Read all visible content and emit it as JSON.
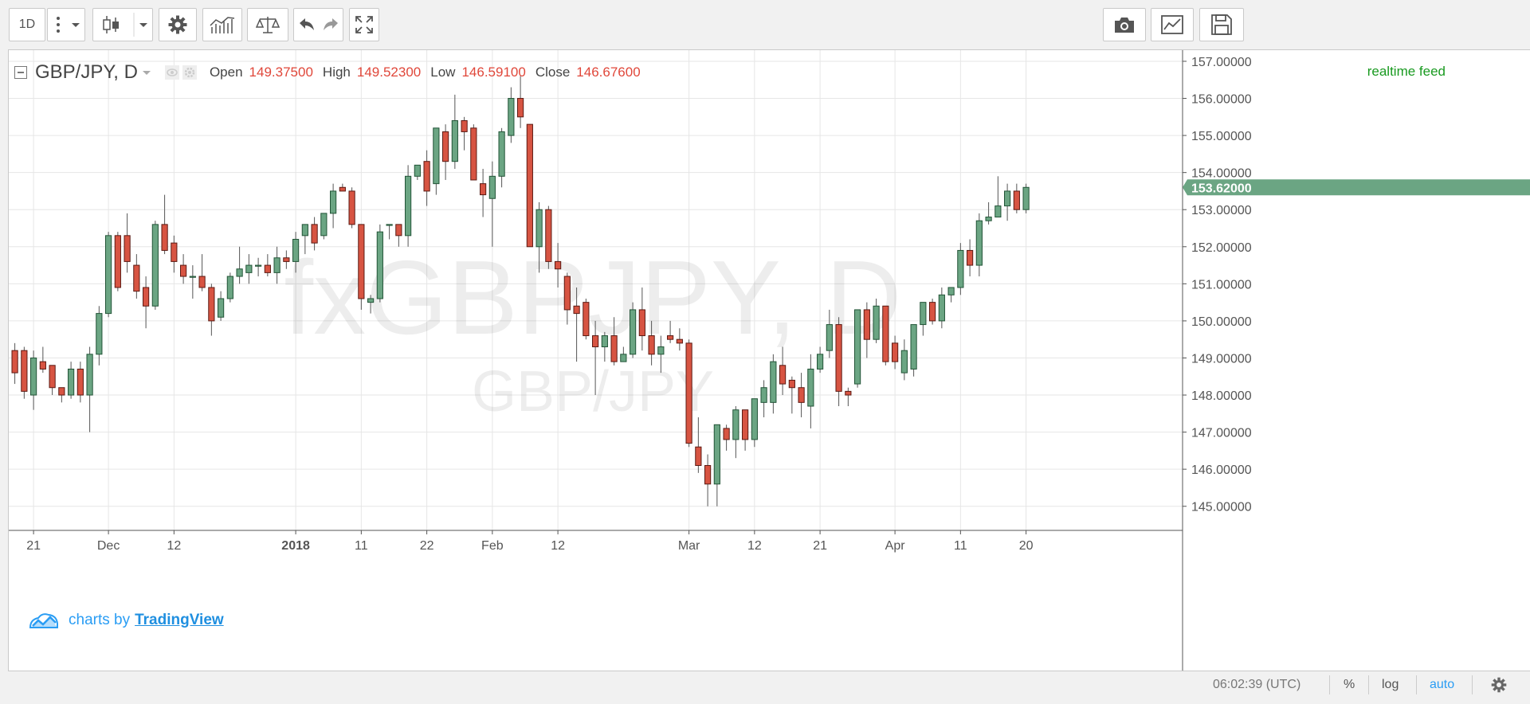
{
  "toolbar": {
    "interval": "1D",
    "icons": [
      "more-icon",
      "chevron-down-icon",
      "candles-icon",
      "chevron-down-icon",
      "gear-icon",
      "indicators-icon",
      "compare-icon",
      "undo-icon",
      "redo-icon",
      "fullscreen-icon",
      "camera-icon",
      "chart-properties-icon",
      "save-icon"
    ]
  },
  "legend": {
    "symbol": "GBP/JPY, D",
    "open_label": "Open",
    "open": "149.37500",
    "high_label": "High",
    "high": "149.52300",
    "low_label": "Low",
    "low": "146.59100",
    "close_label": "Close",
    "close": "146.67600"
  },
  "realtime": "realtime feed",
  "watermark": {
    "main": "fxGBPJPY, D",
    "sub": "GBP/JPY"
  },
  "branding": {
    "prefix": "charts by",
    "name": "TradingView"
  },
  "last_price_label": "153.62000",
  "status": {
    "time": "06:02:39 (UTC)",
    "percent": "%",
    "log": "log",
    "auto": "auto"
  },
  "colors": {
    "up": "#6ba583",
    "down": "#d75442",
    "up_border": "#225437",
    "down_border": "#5b1a13",
    "last_price": "#6ba583",
    "realtime": "#199a20",
    "values": "#e0473a"
  },
  "chart_data": {
    "type": "candlestick",
    "title": "GBP/JPY, D",
    "ylim": [
      144.35,
      157.3
    ],
    "y_ticks": [
      "157.00000",
      "156.00000",
      "155.00000",
      "154.00000",
      "153.00000",
      "152.00000",
      "151.00000",
      "150.00000",
      "149.00000",
      "148.00000",
      "147.00000",
      "146.00000",
      "145.00000"
    ],
    "x_ticks": [
      {
        "label": "21",
        "index": 2
      },
      {
        "label": "Dec",
        "index": 10
      },
      {
        "label": "12",
        "index": 17
      },
      {
        "label": "2018",
        "index": 30,
        "bold": true
      },
      {
        "label": "11",
        "index": 37
      },
      {
        "label": "22",
        "index": 44
      },
      {
        "label": "Feb",
        "index": 51
      },
      {
        "label": "12",
        "index": 58
      },
      {
        "label": "Mar",
        "index": 72
      },
      {
        "label": "12",
        "index": 79
      },
      {
        "label": "21",
        "index": 86
      },
      {
        "label": "Apr",
        "index": 94
      },
      {
        "label": "11",
        "index": 101
      },
      {
        "label": "20",
        "index": 108
      }
    ],
    "candles": [
      [
        149.2,
        149.4,
        148.3,
        148.6
      ],
      [
        149.2,
        149.3,
        147.9,
        148.1
      ],
      [
        148.0,
        149.2,
        147.6,
        149.0
      ],
      [
        148.9,
        149.3,
        148.6,
        148.7
      ],
      [
        148.8,
        148.8,
        148.0,
        148.2
      ],
      [
        148.2,
        148.2,
        147.8,
        148.0
      ],
      [
        148.0,
        148.9,
        147.9,
        148.7
      ],
      [
        148.7,
        148.9,
        147.8,
        148.0
      ],
      [
        148.0,
        149.3,
        147.0,
        149.1
      ],
      [
        149.1,
        150.4,
        148.8,
        150.2
      ],
      [
        150.2,
        152.4,
        150.1,
        152.3
      ],
      [
        152.3,
        152.4,
        150.8,
        150.9
      ],
      [
        152.3,
        152.9,
        151.3,
        151.6
      ],
      [
        151.5,
        151.8,
        150.6,
        150.8
      ],
      [
        150.9,
        151.2,
        149.8,
        150.4
      ],
      [
        150.4,
        152.7,
        150.3,
        152.6
      ],
      [
        152.6,
        153.4,
        151.8,
        151.9
      ],
      [
        152.1,
        152.3,
        151.3,
        151.6
      ],
      [
        151.5,
        151.8,
        151.0,
        151.2
      ],
      [
        151.2,
        151.5,
        150.6,
        151.2
      ],
      [
        151.2,
        151.8,
        150.8,
        150.9
      ],
      [
        150.9,
        151.0,
        149.6,
        150.0
      ],
      [
        150.1,
        150.8,
        150.0,
        150.6
      ],
      [
        150.6,
        151.3,
        150.5,
        151.2
      ],
      [
        151.2,
        152.0,
        151.0,
        151.4
      ],
      [
        151.3,
        151.8,
        151.0,
        151.5
      ],
      [
        151.5,
        151.7,
        151.2,
        151.5
      ],
      [
        151.5,
        151.8,
        151.2,
        151.3
      ],
      [
        151.3,
        152.0,
        151.0,
        151.7
      ],
      [
        151.7,
        151.9,
        151.4,
        151.6
      ],
      [
        151.6,
        152.4,
        151.3,
        152.2
      ],
      [
        152.3,
        152.6,
        151.8,
        152.6
      ],
      [
        152.6,
        152.8,
        151.9,
        152.1
      ],
      [
        152.3,
        152.9,
        152.2,
        152.9
      ],
      [
        152.9,
        153.7,
        152.5,
        153.5
      ],
      [
        153.6,
        153.7,
        153.5,
        153.5
      ],
      [
        153.5,
        153.6,
        152.5,
        152.6
      ],
      [
        152.6,
        152.6,
        150.3,
        150.6
      ],
      [
        150.5,
        150.7,
        150.2,
        150.6
      ],
      [
        150.6,
        152.6,
        150.5,
        152.4
      ],
      [
        152.6,
        152.6,
        152.2,
        152.6
      ],
      [
        152.6,
        152.6,
        152.0,
        152.3
      ],
      [
        152.3,
        154.2,
        152.0,
        153.9
      ],
      [
        153.9,
        154.2,
        153.8,
        154.2
      ],
      [
        154.3,
        154.6,
        153.1,
        153.5
      ],
      [
        153.7,
        155.2,
        153.4,
        155.2
      ],
      [
        155.1,
        155.3,
        153.8,
        154.3
      ],
      [
        154.3,
        156.1,
        154.1,
        155.4
      ],
      [
        155.4,
        155.5,
        154.6,
        155.1
      ],
      [
        155.2,
        155.3,
        153.8,
        153.8
      ],
      [
        153.7,
        154.1,
        152.8,
        153.4
      ],
      [
        153.3,
        154.3,
        152.0,
        153.9
      ],
      [
        153.9,
        155.2,
        153.6,
        155.1
      ],
      [
        155.0,
        156.3,
        154.8,
        156.0
      ],
      [
        156.0,
        156.6,
        155.2,
        155.5
      ],
      [
        155.3,
        155.3,
        152.1,
        152.0
      ],
      [
        152.0,
        153.2,
        151.3,
        153.0
      ],
      [
        153.0,
        153.1,
        151.4,
        151.6
      ],
      [
        151.6,
        152.1,
        150.9,
        151.4
      ],
      [
        151.2,
        151.3,
        149.9,
        150.3
      ],
      [
        150.4,
        150.9,
        148.9,
        150.2
      ],
      [
        150.5,
        150.6,
        149.5,
        149.6
      ],
      [
        149.6,
        150.0,
        148.0,
        149.3
      ],
      [
        149.3,
        149.7,
        148.9,
        149.6
      ],
      [
        149.6,
        150.1,
        148.8,
        148.9
      ],
      [
        148.9,
        149.3,
        148.9,
        149.1
      ],
      [
        149.1,
        150.5,
        149.0,
        150.3
      ],
      [
        150.3,
        150.9,
        149.2,
        149.6
      ],
      [
        149.6,
        150.0,
        148.8,
        149.1
      ],
      [
        149.1,
        149.6,
        148.6,
        149.3
      ],
      [
        149.6,
        150.0,
        149.4,
        149.5
      ],
      [
        149.5,
        149.8,
        149.2,
        149.4
      ],
      [
        149.4,
        149.5,
        146.6,
        146.7
      ],
      [
        146.6,
        147.4,
        145.9,
        146.1
      ],
      [
        146.1,
        146.4,
        145.0,
        145.6
      ],
      [
        145.6,
        147.2,
        145.0,
        147.2
      ],
      [
        147.1,
        147.2,
        146.5,
        146.8
      ],
      [
        146.8,
        147.7,
        146.3,
        147.6
      ],
      [
        147.6,
        147.6,
        146.5,
        146.8
      ],
      [
        146.8,
        147.9,
        146.6,
        147.9
      ],
      [
        147.8,
        148.4,
        147.4,
        148.2
      ],
      [
        147.8,
        149.1,
        147.5,
        148.9
      ],
      [
        148.8,
        149.3,
        148.0,
        148.3
      ],
      [
        148.4,
        148.5,
        147.5,
        148.2
      ],
      [
        148.2,
        148.6,
        147.4,
        147.8
      ],
      [
        147.7,
        149.1,
        147.1,
        148.7
      ],
      [
        148.7,
        149.3,
        148.6,
        149.1
      ],
      [
        149.2,
        150.3,
        149.0,
        149.9
      ],
      [
        149.9,
        150.1,
        147.7,
        148.1
      ],
      [
        148.1,
        148.2,
        147.7,
        148.0
      ],
      [
        148.3,
        150.3,
        148.2,
        150.3
      ],
      [
        150.3,
        150.5,
        149.0,
        149.5
      ],
      [
        149.5,
        150.6,
        149.4,
        150.4
      ],
      [
        150.4,
        150.4,
        148.8,
        148.9
      ],
      [
        149.4,
        149.6,
        148.7,
        148.9
      ],
      [
        148.6,
        149.5,
        148.4,
        149.2
      ],
      [
        148.7,
        149.9,
        148.5,
        149.9
      ],
      [
        149.9,
        150.5,
        149.6,
        150.5
      ],
      [
        150.5,
        150.6,
        149.9,
        150.0
      ],
      [
        150.0,
        150.9,
        149.8,
        150.7
      ],
      [
        150.7,
        150.9,
        150.5,
        150.9
      ],
      [
        150.9,
        152.1,
        150.7,
        151.9
      ],
      [
        151.9,
        152.2,
        151.2,
        151.5
      ],
      [
        151.5,
        152.9,
        151.2,
        152.7
      ],
      [
        152.7,
        153.2,
        152.6,
        152.8
      ],
      [
        152.8,
        153.9,
        152.8,
        153.1
      ],
      [
        153.1,
        153.7,
        152.7,
        153.5
      ],
      [
        153.5,
        153.7,
        152.9,
        153.0
      ],
      [
        153.0,
        153.7,
        152.9,
        153.6
      ]
    ]
  }
}
